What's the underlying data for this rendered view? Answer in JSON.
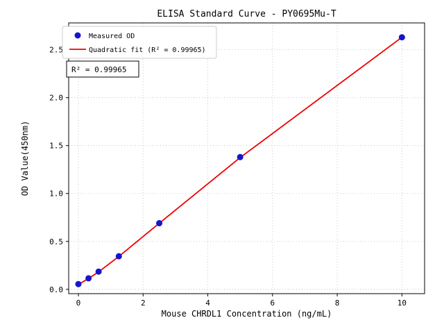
{
  "chart_data": {
    "type": "scatter",
    "title": "ELISA Standard Curve - PY0695Mu-T",
    "xlabel": "Mouse CHRDL1 Concentration (ng/mL)",
    "ylabel": "OD Value(450nm)",
    "xlim": [
      -0.3,
      10.7
    ],
    "ylim": [
      -0.045,
      2.78
    ],
    "xticks": [
      0,
      2,
      4,
      6,
      8,
      10
    ],
    "yticks": [
      0.0,
      0.5,
      1.0,
      1.5,
      2.0,
      2.5
    ],
    "grid": true,
    "legend_position": "upper left",
    "annotation": "R² = 0.99965",
    "colors": {
      "point": "#1515cd",
      "line": "#ee0000",
      "grid": "#bbbbbb",
      "axis": "#000000",
      "legend_border": "#cccccc",
      "annotation_border": "#000000"
    },
    "series": [
      {
        "name": "Measured OD",
        "kind": "scatter",
        "x": [
          0,
          0.313,
          0.625,
          1.25,
          2.5,
          5,
          10
        ],
        "y": [
          0.055,
          0.115,
          0.185,
          0.345,
          0.69,
          1.38,
          2.63
        ]
      },
      {
        "name": "Quadratic fit (R² = 0.99965)",
        "kind": "line",
        "x": [
          0,
          0.313,
          0.625,
          1.25,
          2.5,
          5,
          10
        ],
        "y": [
          0.05,
          0.113,
          0.182,
          0.343,
          0.69,
          1.375,
          2.63
        ]
      }
    ]
  }
}
